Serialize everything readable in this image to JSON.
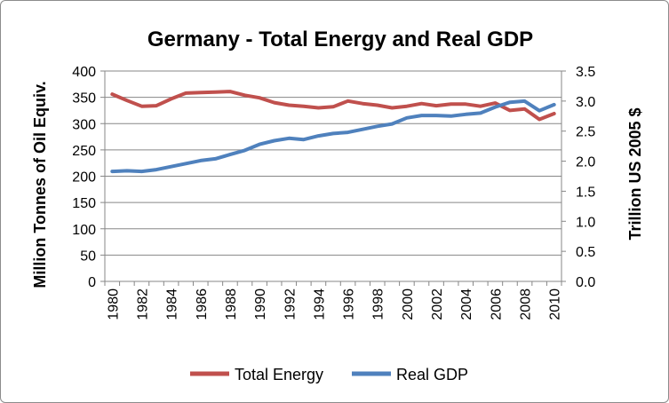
{
  "chart_data": {
    "type": "line",
    "title": "Germany - Total Energy and Real GDP",
    "xlabel": "",
    "ylabel": "Million Tonnes of Oil Equiv.",
    "y2label": "Trillion US 2005 $",
    "x": [
      1980,
      1981,
      1982,
      1983,
      1984,
      1985,
      1986,
      1987,
      1988,
      1989,
      1990,
      1991,
      1992,
      1993,
      1994,
      1995,
      1996,
      1997,
      1998,
      1999,
      2000,
      2001,
      2002,
      2003,
      2004,
      2005,
      2006,
      2007,
      2008,
      2009,
      2010
    ],
    "x_tick_labels": [
      "1980",
      "1982",
      "1984",
      "1986",
      "1988",
      "1990",
      "1992",
      "1994",
      "1996",
      "1998",
      "2000",
      "2002",
      "2004",
      "2006",
      "2008",
      "2010"
    ],
    "ylim": [
      0,
      400
    ],
    "y_ticks": [
      0,
      50,
      100,
      150,
      200,
      250,
      300,
      350,
      400
    ],
    "y_tick_labels": [
      "0",
      "50",
      "100",
      "150",
      "200",
      "250",
      "300",
      "350",
      "400"
    ],
    "y2lim": [
      0,
      3.5
    ],
    "y2_ticks": [
      0,
      0.5,
      1.0,
      1.5,
      2.0,
      2.5,
      3.0,
      3.5
    ],
    "y2_tick_labels": [
      "0.0",
      "0.5",
      "1.0",
      "1.5",
      "2.0",
      "2.5",
      "3.0",
      "3.5"
    ],
    "grid": true,
    "legend_position": "bottom",
    "series": [
      {
        "name": "Total Energy",
        "axis": "left",
        "color": "#C0504D",
        "values": [
          356,
          344,
          333,
          334,
          347,
          358,
          359,
          360,
          361,
          354,
          349,
          340,
          335,
          333,
          330,
          332,
          343,
          338,
          335,
          330,
          333,
          338,
          334,
          337,
          337,
          333,
          339,
          325,
          328,
          308,
          319
        ]
      },
      {
        "name": "Real GDP",
        "axis": "right",
        "color": "#4F81BD",
        "values": [
          1.83,
          1.84,
          1.83,
          1.86,
          1.91,
          1.96,
          2.01,
          2.04,
          2.11,
          2.18,
          2.28,
          2.34,
          2.38,
          2.36,
          2.42,
          2.46,
          2.48,
          2.53,
          2.58,
          2.62,
          2.72,
          2.76,
          2.76,
          2.75,
          2.78,
          2.8,
          2.9,
          2.98,
          3.0,
          2.84,
          2.94
        ]
      }
    ]
  }
}
